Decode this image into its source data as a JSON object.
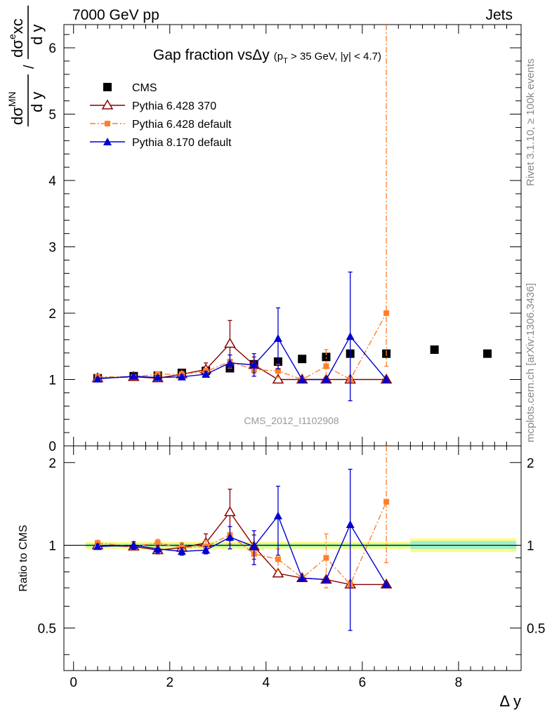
{
  "header": {
    "left": "7000 GeV pp",
    "right": "Jets"
  },
  "side_texts": {
    "top": "Rivet 3.1.10, ≥ 100k events",
    "bottom": "mcplots.cern.ch [arXiv:1306.3436]"
  },
  "watermark": "CMS_2012_I1102908",
  "chart_data": {
    "type": "scatter",
    "title": "Gap fraction vs Δy (p_T > 35 GeV, |y| < 4.7)",
    "title_main": "Gap fraction vsΔy",
    "title_pt": "(p",
    "title_pt_sub": "T",
    "title_rest": " > 35 GeV, |y| < 4.7)",
    "xlabel": "Δ y",
    "ylabel": "dσ^MN/dy / dσ^excl/dy",
    "ylabel_parts": {
      "num_a": "dσ",
      "sup_a": "MN",
      "den_a": "d y",
      "slash": "/",
      "num_b": "dσ",
      "sup_b": "e",
      "num_b_rest": "xc",
      "den_b": "d y"
    },
    "ratio_ylabel": "Ratio to CMS",
    "xlim": [
      -0.2,
      9.3
    ],
    "main_ylim": [
      0,
      6.35
    ],
    "ratio_ylim": [
      0.35,
      2.3
    ],
    "ratio_log": true,
    "x_ticks": [
      "0",
      "2",
      "4",
      "6",
      "8"
    ],
    "main_y_ticks": [
      "0",
      "1",
      "2",
      "3",
      "4",
      "5",
      "6"
    ],
    "ratio_y_ticks": [
      "0.5",
      "1",
      "2"
    ],
    "legend": [
      {
        "name": "CMS",
        "color": "#000000",
        "marker": "square"
      },
      {
        "name": "Pythia 6.428 370",
        "color": "#8b0000",
        "marker": "open-triangle"
      },
      {
        "name": "Pythia 6.428 default",
        "color": "#ff7f2a",
        "marker": "small-square"
      },
      {
        "name": "Pythia 8.170 default",
        "color": "#0000d0",
        "marker": "triangle"
      }
    ],
    "data": {
      "name": "CMS",
      "x": [
        0.5,
        1.25,
        1.75,
        2.25,
        2.75,
        3.25,
        3.75,
        4.25,
        4.75,
        5.25,
        5.75,
        6.5,
        7.5,
        8.6
      ],
      "y": [
        1.02,
        1.05,
        1.06,
        1.1,
        1.13,
        1.17,
        1.23,
        1.27,
        1.31,
        1.34,
        1.39,
        1.39,
        1.45,
        1.39
      ],
      "band_x": [
        0.25,
        7.0,
        8.0,
        9.2
      ]
    },
    "series": [
      {
        "name": "Pythia 6.428 370",
        "x": [
          0.5,
          1.25,
          1.75,
          2.25,
          2.75,
          3.25,
          3.75,
          4.25,
          4.75,
          5.25,
          5.75,
          6.5
        ],
        "y": [
          1.02,
          1.04,
          1.02,
          1.08,
          1.15,
          1.54,
          1.22,
          1.0,
          1.0,
          1.0,
          1.0,
          1.0
        ],
        "err": [
          0.02,
          0.02,
          0.03,
          0.04,
          0.1,
          0.35,
          0.12,
          0,
          0,
          0,
          0,
          0
        ]
      },
      {
        "name": "Pythia 6.428 default",
        "x": [
          0.5,
          1.25,
          1.75,
          2.25,
          2.75,
          3.25,
          3.75,
          4.25,
          4.75,
          5.25,
          5.75,
          6.5
        ],
        "y": [
          1.04,
          1.04,
          1.08,
          1.08,
          1.12,
          1.27,
          1.15,
          1.13,
          1.0,
          1.2,
          1.0,
          2.0
        ],
        "err": [
          0.02,
          0.03,
          0.03,
          0.04,
          0.05,
          0.1,
          0.1,
          0.1,
          0,
          0.25,
          0,
          4.5
        ]
      },
      {
        "name": "Pythia 8.170 default",
        "x": [
          0.5,
          1.25,
          1.75,
          2.25,
          2.75,
          3.25,
          3.75,
          4.25,
          4.75,
          5.25,
          5.75,
          6.5
        ],
        "y": [
          1.01,
          1.05,
          1.03,
          1.04,
          1.08,
          1.25,
          1.22,
          1.62,
          1.0,
          1.0,
          1.65,
          1.0
        ],
        "err": [
          0.02,
          0.03,
          0.03,
          0.03,
          0.04,
          0.12,
          0.17,
          0.46,
          0,
          0,
          0.97,
          0
        ]
      }
    ],
    "ratio_series": [
      {
        "name": "Pythia 6.428 370",
        "x": [
          0.5,
          1.25,
          1.75,
          2.25,
          2.75,
          3.25,
          3.75,
          4.25,
          4.75,
          5.25,
          5.75,
          6.5
        ],
        "y": [
          1.0,
          0.99,
          0.96,
          0.98,
          1.02,
          1.32,
          0.99,
          0.79,
          0.76,
          0.75,
          0.72,
          0.72
        ],
        "err": [
          0.02,
          0.02,
          0.03,
          0.04,
          0.08,
          0.28,
          0.1,
          0,
          0,
          0,
          0,
          0
        ]
      },
      {
        "name": "Pythia 6.428 default",
        "x": [
          0.5,
          1.25,
          1.75,
          2.25,
          2.75,
          3.25,
          3.75,
          4.25,
          4.75,
          5.25,
          5.75,
          6.5
        ],
        "y": [
          1.02,
          0.99,
          1.02,
          0.98,
          0.99,
          1.09,
          0.93,
          0.89,
          0.76,
          0.9,
          0.72,
          1.44
        ],
        "err": [
          0.02,
          0.02,
          0.03,
          0.04,
          0.05,
          0.08,
          0.08,
          0.08,
          0,
          0.2,
          0,
          2.0
        ]
      },
      {
        "name": "Pythia 8.170 default",
        "x": [
          0.5,
          1.25,
          1.75,
          2.25,
          2.75,
          3.25,
          3.75,
          4.25,
          4.75,
          5.25,
          5.75,
          6.5
        ],
        "y": [
          0.99,
          1.0,
          0.97,
          0.95,
          0.96,
          1.07,
          0.99,
          1.28,
          0.76,
          0.75,
          1.19,
          0.72
        ],
        "err": [
          0.02,
          0.03,
          0.03,
          0.03,
          0.03,
          0.1,
          0.14,
          0.36,
          0,
          0,
          0.7,
          0
        ]
      }
    ]
  }
}
